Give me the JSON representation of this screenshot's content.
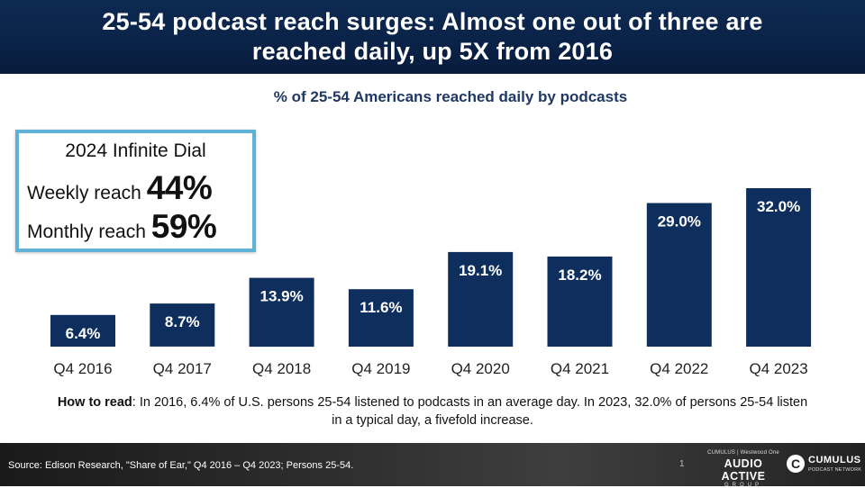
{
  "header": {
    "title": "25-54 podcast reach surges: Almost one out of three are reached daily, up 5X from 2016"
  },
  "callout": {
    "title": "2024 Infinite Dial",
    "weekly_label": "Weekly reach",
    "weekly_value": "44%",
    "monthly_label": "Monthly reach",
    "monthly_value": "59%"
  },
  "chart_data": {
    "type": "bar",
    "title": "% of 25-54 Americans reached daily by podcasts",
    "categories": [
      "Q4 2016",
      "Q4 2017",
      "Q4 2018",
      "Q4 2019",
      "Q4 2020",
      "Q4 2021",
      "Q4 2022",
      "Q4 2023"
    ],
    "values": [
      6.4,
      8.7,
      13.9,
      11.6,
      19.1,
      18.2,
      29.0,
      32.0
    ],
    "data_labels": [
      "6.4%",
      "8.7%",
      "13.9%",
      "11.6%",
      "19.1%",
      "18.2%",
      "29.0%",
      "32.0%"
    ],
    "xlabel": "",
    "ylabel": "",
    "ylim": [
      0,
      35
    ],
    "grid": false,
    "bar_color": "#0e2f5e",
    "label_color": "#ffffff"
  },
  "note": {
    "lead": "How to read",
    "text": ": In 2016, 6.4% of U.S. persons 25-54 listened to podcasts in an average day. In 2023, 32.0% of persons 25-54 listen in a typical day, a fivefold increase."
  },
  "footer": {
    "source": "Source: Edison Research, \"Share of Ear,\" Q4 2016 – Q4 2023; Persons 25-54.",
    "page_number": "1",
    "logo_top": "CUMULUS | Westwood One",
    "logo_main": "AUDIO ACTIVE",
    "logo_sub": "GROUP",
    "cpn_icon": "C",
    "cpn_main": "CUMULUS",
    "cpn_sub": "PODCAST NETWORK"
  }
}
